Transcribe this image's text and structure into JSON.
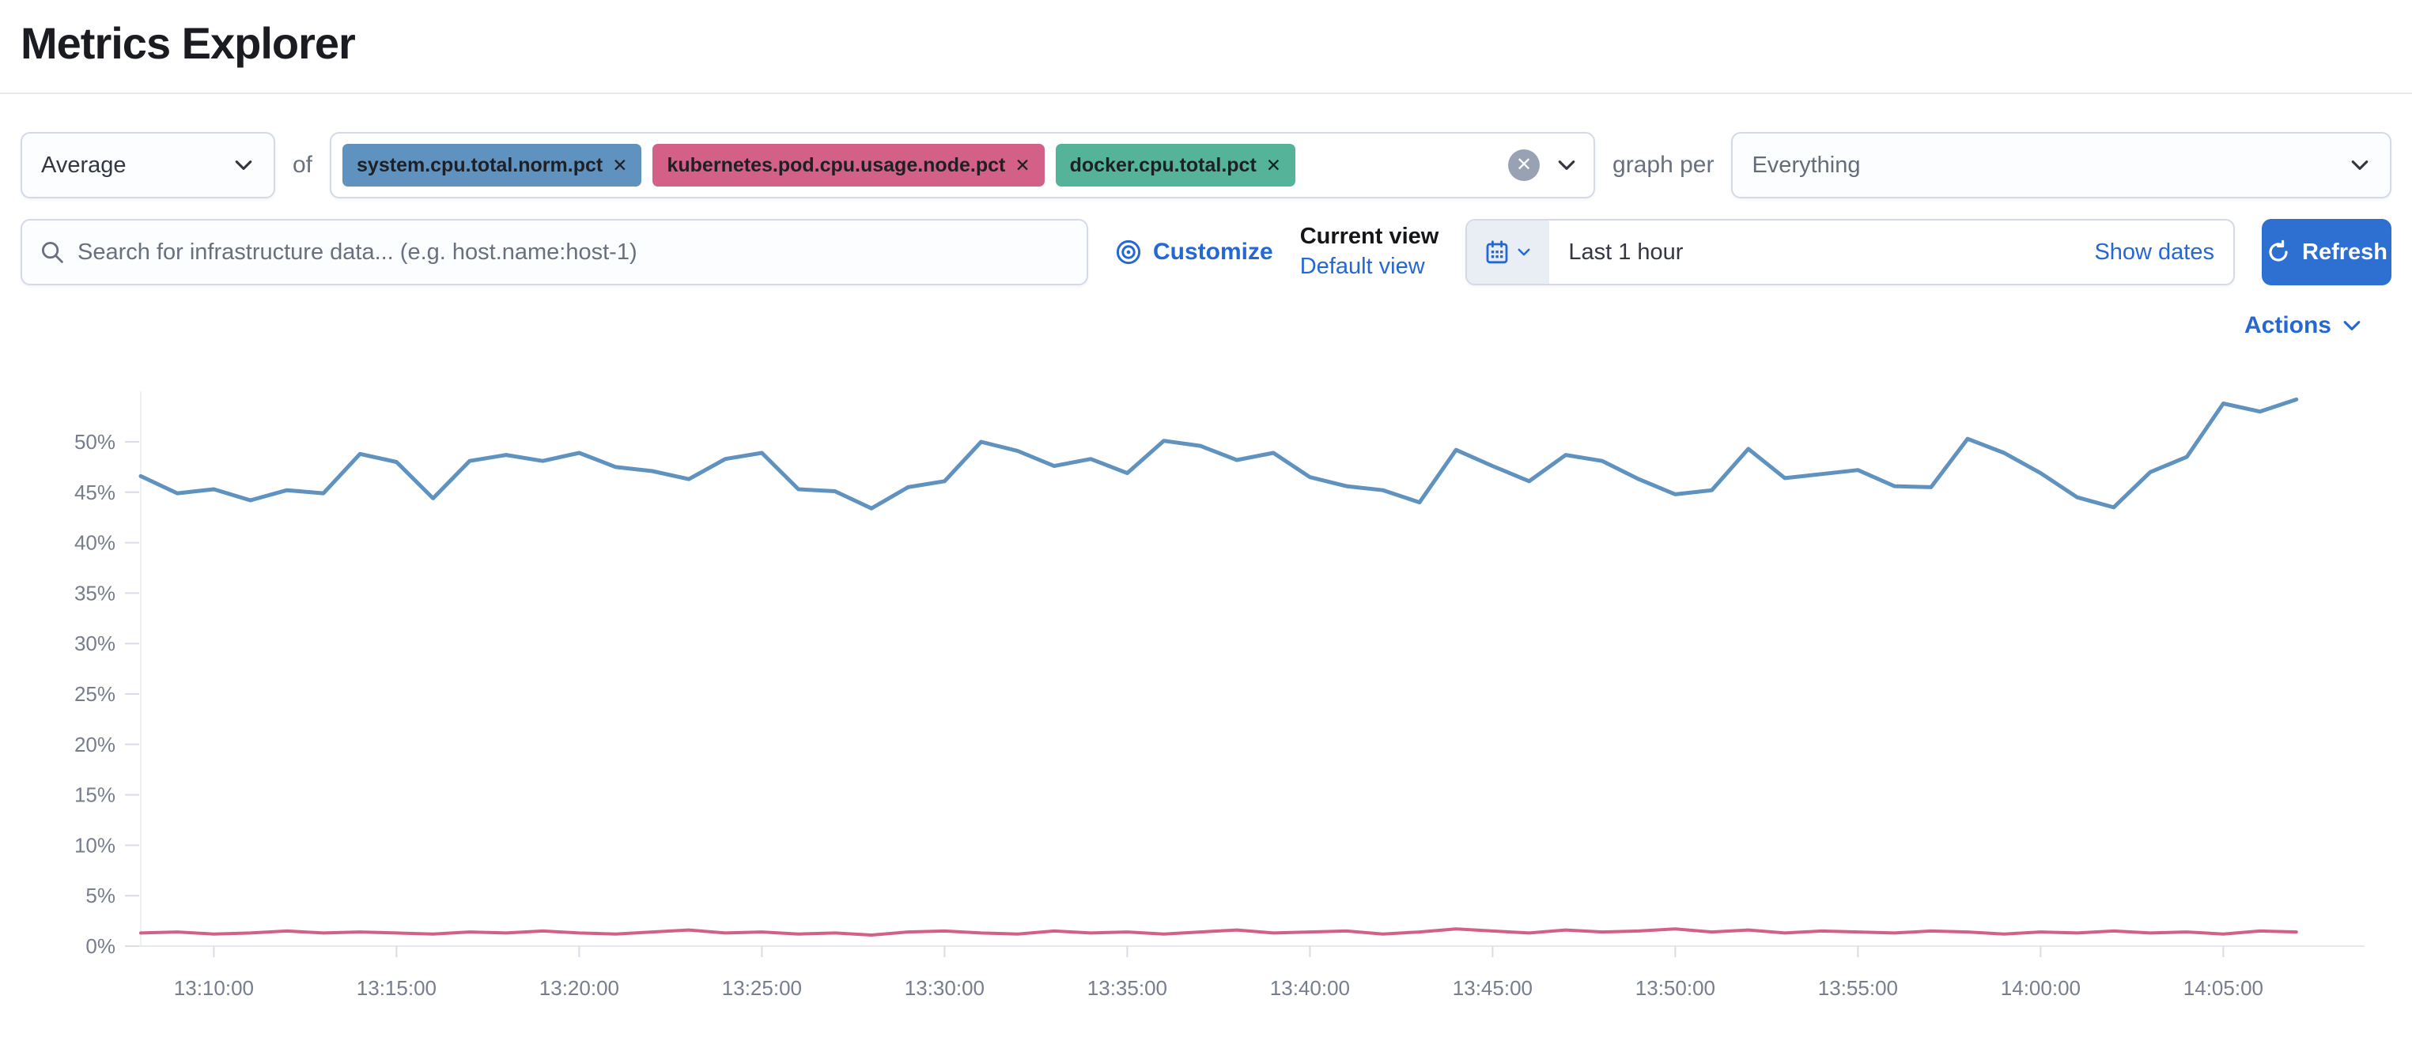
{
  "page": {
    "title": "Metrics Explorer"
  },
  "toolbar": {
    "aggregation": {
      "value": "Average"
    },
    "of_label": "of",
    "metrics": [
      {
        "label": "system.cpu.total.norm.pct",
        "color": "#6092C0"
      },
      {
        "label": "kubernetes.pod.cpu.usage.node.pct",
        "color": "#D36086"
      },
      {
        "label": "docker.cpu.total.pct",
        "color": "#54B399"
      }
    ],
    "remove_icon": "✕",
    "clear_icon": "✕",
    "graph_per_label": "graph per",
    "group_by": {
      "value": "Everything"
    }
  },
  "search": {
    "placeholder": "Search for infrastructure data... (e.g. host.name:host-1)"
  },
  "view_controls": {
    "customize_label": "Customize",
    "current_view_label": "Current view",
    "default_view_label": "Default view"
  },
  "time_controls": {
    "range_label": "Last 1 hour",
    "show_dates_label": "Show dates",
    "refresh_label": "Refresh"
  },
  "actions": {
    "label": "Actions"
  },
  "chart_data": {
    "type": "line",
    "title": "",
    "xlabel": "",
    "ylabel": "",
    "ylim": [
      0,
      55
    ],
    "grid": false,
    "legend": "none",
    "y_tick_labels": [
      "0%",
      "5%",
      "10%",
      "15%",
      "20%",
      "25%",
      "30%",
      "35%",
      "40%",
      "45%",
      "50%"
    ],
    "x_tick_labels": [
      "13:10:00",
      "13:15:00",
      "13:20:00",
      "13:25:00",
      "13:30:00",
      "13:35:00",
      "13:40:00",
      "13:45:00",
      "13:50:00",
      "13:55:00",
      "14:00:00",
      "14:05:00"
    ],
    "x": [
      "13:08:00",
      "13:09:00",
      "13:10:00",
      "13:11:00",
      "13:12:00",
      "13:13:00",
      "13:14:00",
      "13:15:00",
      "13:16:00",
      "13:17:00",
      "13:18:00",
      "13:19:00",
      "13:20:00",
      "13:21:00",
      "13:22:00",
      "13:23:00",
      "13:24:00",
      "13:25:00",
      "13:26:00",
      "13:27:00",
      "13:28:00",
      "13:29:00",
      "13:30:00",
      "13:31:00",
      "13:32:00",
      "13:33:00",
      "13:34:00",
      "13:35:00",
      "13:36:00",
      "13:37:00",
      "13:38:00",
      "13:39:00",
      "13:40:00",
      "13:41:00",
      "13:42:00",
      "13:43:00",
      "13:44:00",
      "13:45:00",
      "13:46:00",
      "13:47:00",
      "13:48:00",
      "13:49:00",
      "13:50:00",
      "13:51:00",
      "13:52:00",
      "13:53:00",
      "13:54:00",
      "13:55:00",
      "13:56:00",
      "13:57:00",
      "13:58:00",
      "13:59:00",
      "14:00:00",
      "14:01:00",
      "14:02:00",
      "14:03:00",
      "14:04:00",
      "14:05:00",
      "14:06:00",
      "14:07:00"
    ],
    "series": [
      {
        "name": "system.cpu.total.norm.pct (Average)",
        "color": "#6092C0",
        "values": [
          46.6,
          44.9,
          45.3,
          44.2,
          45.2,
          44.9,
          48.8,
          48.0,
          44.4,
          48.1,
          48.7,
          48.1,
          48.9,
          47.5,
          47.1,
          46.3,
          48.3,
          48.9,
          45.3,
          45.1,
          43.4,
          45.5,
          46.1,
          50.0,
          49.1,
          47.6,
          48.3,
          46.9,
          50.1,
          49.6,
          48.2,
          48.9,
          46.5,
          45.6,
          45.2,
          44.0,
          49.2,
          47.6,
          46.1,
          48.7,
          48.1,
          46.3,
          44.8,
          45.2,
          49.3,
          46.4,
          46.8,
          47.2,
          45.6,
          45.5,
          50.3,
          48.9,
          46.9,
          44.5,
          43.5,
          47.0,
          48.5,
          53.8,
          53.0,
          54.2
        ]
      },
      {
        "name": "kubernetes.pod.cpu.usage.node.pct (Average)",
        "color": "#D36086",
        "values": [
          1.3,
          1.4,
          1.2,
          1.3,
          1.5,
          1.3,
          1.4,
          1.3,
          1.2,
          1.4,
          1.3,
          1.5,
          1.3,
          1.2,
          1.4,
          1.6,
          1.3,
          1.4,
          1.2,
          1.3,
          1.1,
          1.4,
          1.5,
          1.3,
          1.2,
          1.5,
          1.3,
          1.4,
          1.2,
          1.4,
          1.6,
          1.3,
          1.4,
          1.5,
          1.2,
          1.4,
          1.7,
          1.5,
          1.3,
          1.6,
          1.4,
          1.5,
          1.7,
          1.4,
          1.6,
          1.3,
          1.5,
          1.4,
          1.3,
          1.5,
          1.4,
          1.2,
          1.4,
          1.3,
          1.5,
          1.3,
          1.4,
          1.2,
          1.5,
          1.4
        ]
      }
    ]
  }
}
